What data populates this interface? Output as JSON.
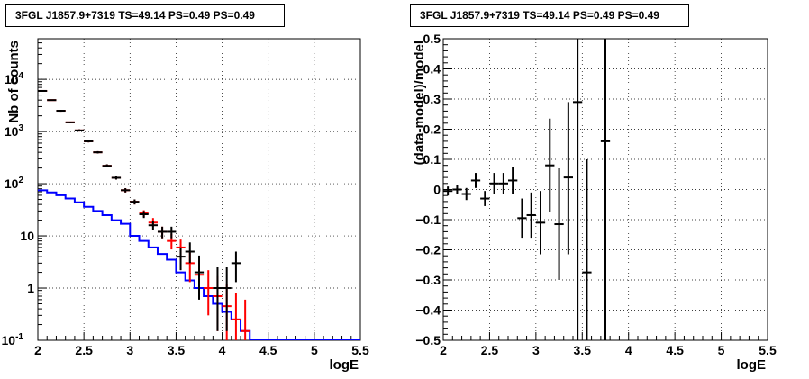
{
  "chart_data": [
    {
      "type": "line",
      "title": "3FGL J1857.9+7319 TS=49.14 PS=0.49 PS=0.49",
      "xlabel": "logE",
      "ylabel": "Nb of counts",
      "xlim": [
        2,
        5.5
      ],
      "ylim": [
        0.1,
        60000
      ],
      "yscale": "log",
      "grid": true,
      "x_ticks": [
        "2",
        "2.5",
        "3",
        "3.5",
        "4",
        "4.5",
        "5",
        "5.5"
      ],
      "y_ticks": [
        {
          "value": 0.1,
          "label": "10",
          "sup": "-1"
        },
        {
          "value": 1,
          "label": "1",
          "sup": ""
        },
        {
          "value": 10,
          "label": "10",
          "sup": ""
        },
        {
          "value": 100,
          "label": "10",
          "sup": "2"
        },
        {
          "value": 1000,
          "label": "10",
          "sup": "3"
        },
        {
          "value": 10000,
          "label": "10",
          "sup": "4"
        }
      ],
      "series": [
        {
          "color": "#0000ff",
          "style": "step",
          "bin_width": 0.1,
          "x": [
            2.05,
            2.15,
            2.25,
            2.35,
            2.45,
            2.55,
            2.65,
            2.75,
            2.85,
            2.95,
            3.05,
            3.15,
            3.25,
            3.35,
            3.45,
            3.55,
            3.65,
            3.75,
            3.85,
            3.95,
            4.05,
            4.15,
            4.25,
            4.35,
            4.45,
            4.55,
            4.65,
            4.75,
            4.85,
            4.95,
            5.05,
            5.15,
            5.25,
            5.35,
            5.45
          ],
          "y": [
            75,
            68,
            60,
            52,
            44,
            36,
            30,
            25,
            20,
            17,
            10,
            8,
            6,
            4.5,
            3.5,
            2,
            1.4,
            1,
            0.7,
            0.5,
            0.35,
            0.25,
            0.15,
            0.1,
            0.1,
            0.1,
            0.1,
            0.1,
            0.1,
            0.1,
            0.1,
            0.1,
            0.1,
            0.1,
            0.1
          ]
        },
        {
          "color": "#ff0000",
          "style": "errorbar",
          "x": [
            2.05,
            2.15,
            2.25,
            2.35,
            2.45,
            2.55,
            2.65,
            2.75,
            2.85,
            2.95,
            3.05,
            3.15,
            3.25,
            3.35,
            3.45,
            3.55,
            3.65,
            3.75,
            3.85,
            3.95,
            4.05,
            4.15,
            4.25
          ],
          "y": [
            6000,
            4000,
            2500,
            1500,
            1050,
            650,
            400,
            220,
            130,
            75,
            45,
            27,
            18,
            12,
            8,
            6,
            3,
            1.8,
            1,
            0.7,
            0.45,
            0.25,
            0.15
          ],
          "ylow": [
            5800,
            3900,
            2400,
            1450,
            1000,
            620,
            380,
            205,
            120,
            68,
            40,
            23,
            15,
            9,
            5.5,
            3.5,
            1.3,
            0.7,
            0.3,
            0.15,
            0.1,
            0.1,
            0.1
          ],
          "yhigh": [
            6200,
            4100,
            2600,
            1550,
            1100,
            680,
            420,
            235,
            140,
            82,
            50,
            31,
            22,
            15,
            11,
            8.5,
            5,
            3.2,
            2.2,
            1.7,
            1.2,
            0.8,
            0.6
          ]
        },
        {
          "color": "#000000",
          "style": "errorbar",
          "x": [
            2.05,
            2.15,
            2.25,
            2.35,
            2.45,
            2.55,
            2.65,
            2.75,
            2.85,
            2.95,
            3.05,
            3.15,
            3.25,
            3.35,
            3.45,
            3.55,
            3.65,
            3.75,
            3.95,
            4.05,
            4.15
          ],
          "y": [
            6000,
            4000,
            2500,
            1500,
            1050,
            650,
            400,
            220,
            130,
            75,
            45,
            26,
            16,
            12,
            12,
            4,
            5,
            2,
            1,
            1,
            3
          ],
          "ylow": [
            5800,
            3900,
            2400,
            1450,
            1000,
            620,
            380,
            205,
            120,
            68,
            40,
            22,
            13,
            9,
            9,
            2.2,
            3,
            0.6,
            0.15,
            0.15,
            1.3
          ],
          "yhigh": [
            6200,
            4100,
            2600,
            1550,
            1100,
            680,
            420,
            235,
            140,
            82,
            50,
            30,
            19,
            15,
            15,
            6,
            7.5,
            4.2,
            2.5,
            2.5,
            5
          ]
        }
      ]
    },
    {
      "type": "scatter",
      "title": "3FGL J1857.9+7319 TS=49.14 PS=0.49 PS=0.49",
      "xlabel": "logE",
      "ylabel": "(data-model)/model",
      "xlim": [
        2,
        5.5
      ],
      "ylim": [
        -0.5,
        0.5
      ],
      "grid": true,
      "x_ticks": [
        "2",
        "2.5",
        "3",
        "3.5",
        "4",
        "4.5",
        "5",
        "5.5"
      ],
      "y_ticks": [
        "-0.5",
        "-0.4",
        "-0.3",
        "-0.2",
        "-0.1",
        "0",
        "0.1",
        "0.2",
        "0.3",
        "0.4",
        "0.5"
      ],
      "series": [
        {
          "color": "#000000",
          "style": "errorbar",
          "x": [
            2.05,
            2.15,
            2.25,
            2.35,
            2.45,
            2.55,
            2.65,
            2.75,
            2.85,
            2.95,
            3.05,
            3.15,
            3.25,
            3.35,
            3.45,
            3.55,
            3.75
          ],
          "y": [
            -0.005,
            0.0,
            -0.015,
            0.03,
            -0.03,
            0.02,
            0.02,
            0.03,
            -0.095,
            -0.085,
            -0.11,
            0.08,
            -0.115,
            0.04,
            0.29,
            -0.275,
            0.16
          ],
          "ylow": [
            -0.02,
            -0.015,
            -0.035,
            0.005,
            -0.055,
            -0.015,
            -0.015,
            -0.015,
            -0.16,
            -0.16,
            -0.215,
            -0.075,
            -0.3,
            -0.215,
            -0.5,
            -0.5,
            -0.5
          ],
          "yhigh": [
            0.01,
            0.015,
            0.005,
            0.055,
            -0.005,
            0.055,
            0.055,
            0.075,
            -0.03,
            -0.01,
            -0.005,
            0.235,
            0.07,
            0.29,
            0.5,
            0.1,
            0.5
          ]
        }
      ]
    }
  ]
}
